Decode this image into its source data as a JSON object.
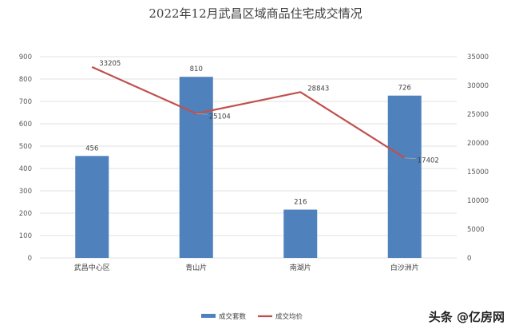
{
  "chart_data": {
    "type": "bar",
    "title": "2022年12月武昌区域商品住宅成交情况",
    "categories": [
      "武昌中心区",
      "青山片",
      "南湖片",
      "白沙洲片"
    ],
    "series": [
      {
        "name": "成交套数",
        "type": "bar",
        "axis": "left",
        "color": "#4f81bd",
        "values": [
          456,
          810,
          216,
          726
        ]
      },
      {
        "name": "成交均价",
        "type": "line",
        "axis": "right",
        "color": "#c0504d",
        "values": [
          33205,
          25104,
          28843,
          17402
        ]
      }
    ],
    "y_left": {
      "min": 0,
      "max": 900,
      "step": 100
    },
    "y_right": {
      "min": 0,
      "max": 35000,
      "step": 5000
    },
    "grid": true,
    "legend_position": "bottom"
  },
  "watermark": {
    "text": "头条 @亿房网"
  }
}
